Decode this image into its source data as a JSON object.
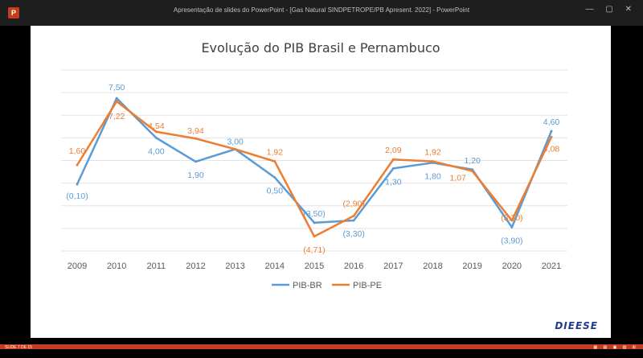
{
  "window": {
    "title": "Apresentação de slides do PowerPoint - [Gas Natural SINDPETROPE/PB Apresent. 2022] - PowerPoint",
    "app_icon_label": "P",
    "controls": "— ▢ ✕"
  },
  "status": {
    "left_text": "SLIDE 7 DE 15",
    "right_icons": "▦ ▤ ▣ ▥ ⊞"
  },
  "logo": "DIEESE",
  "colors": {
    "background": "#000000",
    "slide": "#ffffff",
    "series_br": "#5b9bd5",
    "series_pe": "#ed7d31",
    "accent_strip": "#c43e1c"
  },
  "chart_data": {
    "type": "line",
    "title": "Evolução do PIB Brasil e Pernambuco",
    "categories": [
      "2009",
      "2010",
      "2011",
      "2012",
      "2013",
      "2014",
      "2015",
      "2016",
      "2017",
      "2018",
      "2019",
      "2020",
      "2021"
    ],
    "series": [
      {
        "name": "PIB-BR",
        "color": "#5b9bd5",
        "values": [
          -0.1,
          7.5,
          4.0,
          1.9,
          3.0,
          0.5,
          -3.5,
          -3.3,
          1.3,
          1.8,
          1.2,
          -3.9,
          4.6
        ],
        "labels": [
          "(0,10)",
          "7,50",
          "4,00",
          "1,90",
          "3,00",
          "0,50",
          "(3,50)",
          "(3,30)",
          "1,30",
          "1,80",
          "1,20",
          "(3,90)",
          "4,60"
        ]
      },
      {
        "name": "PIB-PE",
        "color": "#ed7d31",
        "values": [
          1.6,
          7.22,
          4.54,
          3.94,
          3.0,
          1.92,
          -4.71,
          -2.9,
          2.09,
          1.92,
          1.07,
          -3.3,
          4.08
        ],
        "labels": [
          "1,60",
          "7,22",
          "4,54",
          "3,94",
          "",
          "1,92",
          "(4,71)",
          "(2,90)",
          "2,09",
          "1,92",
          "1,07",
          "(3,30)",
          "4,08"
        ]
      }
    ],
    "ylim": [
      -6,
      10
    ],
    "grid": true,
    "legend_position": "bottom"
  }
}
